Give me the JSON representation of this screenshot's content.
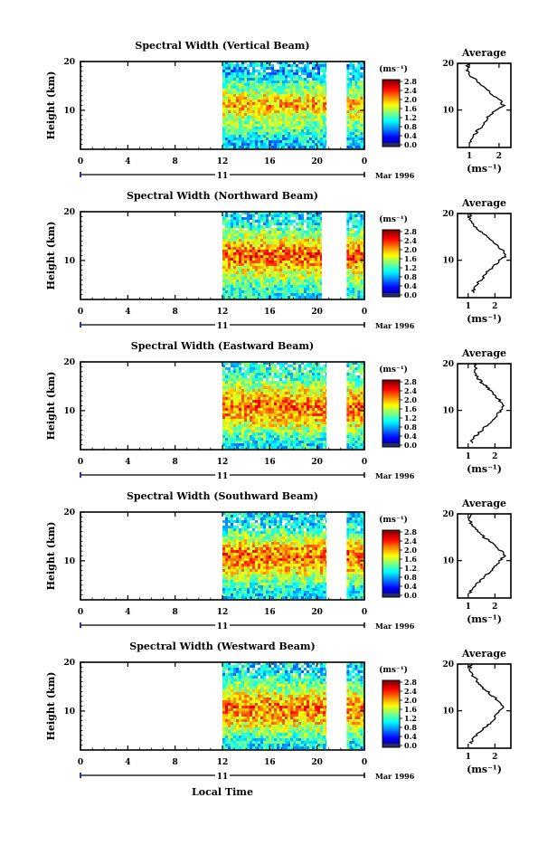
{
  "figure": {
    "date_label": "Mar 1996",
    "day_label": "11",
    "xlabel": "Local Time"
  },
  "colorbar": {
    "unit": "(ms⁻¹)",
    "ticks": [
      "2.8",
      "2.4",
      "2.0",
      "1.6",
      "1.2",
      "0.8",
      "0.4",
      "0.0"
    ]
  },
  "chart_data": [
    {
      "type": "heatmap",
      "title": "Spectral Width (Vertical Beam)",
      "ylabel": "Height (km)",
      "xlabel": "",
      "xticks": [
        "0",
        "4",
        "8",
        "12",
        "16",
        "20",
        "0"
      ],
      "yticks": [
        "20",
        "10"
      ],
      "xlim": [
        0,
        24
      ],
      "ylim": [
        2,
        20
      ],
      "data_spans_hours": [
        [
          12,
          20.8
        ],
        [
          22.5,
          24
        ]
      ],
      "clim": [
        0,
        3.0
      ],
      "profile": {
        "title": "Average",
        "xlabel": "(ms⁻¹)",
        "xticks": [
          "1",
          "2"
        ],
        "yticks": [
          "20",
          "10"
        ],
        "xlim": [
          0.6,
          2.4
        ],
        "height_km": [
          3,
          4,
          5,
          6,
          7,
          8,
          9,
          10,
          11,
          12,
          13,
          14,
          15,
          16,
          17,
          18,
          19,
          20
        ],
        "width_ms": [
          1.0,
          1.05,
          1.2,
          1.35,
          1.5,
          1.55,
          1.7,
          1.9,
          2.15,
          2.05,
          1.85,
          1.65,
          1.45,
          1.3,
          1.1,
          0.95,
          0.9,
          1.0
        ]
      }
    },
    {
      "type": "heatmap",
      "title": "Spectral Width (Northward Beam)",
      "ylabel": "Height (km)",
      "xlabel": "",
      "xticks": [
        "0",
        "4",
        "8",
        "12",
        "16",
        "20",
        "0"
      ],
      "yticks": [
        "20",
        "10"
      ],
      "xlim": [
        0,
        24
      ],
      "ylim": [
        2,
        20
      ],
      "data_spans_hours": [
        [
          12,
          20.4
        ],
        [
          22.5,
          24
        ]
      ],
      "clim": [
        0,
        3.0
      ],
      "profile": {
        "title": "Average",
        "xlabel": "(ms⁻¹)",
        "xticks": [
          "1",
          "2"
        ],
        "yticks": [
          "20",
          "10"
        ],
        "xlim": [
          0.6,
          2.6
        ],
        "height_km": [
          3,
          4,
          5,
          6,
          7,
          8,
          9,
          10,
          11,
          12,
          13,
          14,
          15,
          16,
          17,
          18,
          19,
          20
        ],
        "width_ms": [
          1.15,
          1.25,
          1.35,
          1.5,
          1.65,
          1.8,
          2.0,
          2.2,
          2.4,
          2.3,
          2.1,
          1.9,
          1.7,
          1.5,
          1.3,
          1.15,
          1.05,
          1.1
        ]
      }
    },
    {
      "type": "heatmap",
      "title": "Spectral Width (Eastward Beam)",
      "ylabel": "Height (km)",
      "xlabel": "",
      "xticks": [
        "0",
        "4",
        "8",
        "12",
        "16",
        "20",
        "0"
      ],
      "yticks": [
        "20",
        "10"
      ],
      "xlim": [
        0,
        24
      ],
      "ylim": [
        2,
        20
      ],
      "data_spans_hours": [
        [
          12,
          20.8
        ],
        [
          22.5,
          24
        ]
      ],
      "clim": [
        0,
        3.0
      ],
      "profile": {
        "title": "Average",
        "xlabel": "(ms⁻¹)",
        "xticks": [
          "1",
          "2"
        ],
        "yticks": [
          "20",
          "10"
        ],
        "xlim": [
          0.6,
          2.6
        ],
        "height_km": [
          3,
          4,
          5,
          6,
          7,
          8,
          9,
          10,
          11,
          12,
          13,
          14,
          15,
          16,
          17,
          18,
          19,
          20
        ],
        "width_ms": [
          1.1,
          1.2,
          1.35,
          1.55,
          1.75,
          1.95,
          2.1,
          2.2,
          2.35,
          2.2,
          2.05,
          1.9,
          1.7,
          1.5,
          1.35,
          1.25,
          1.3,
          1.2
        ]
      }
    },
    {
      "type": "heatmap",
      "title": "Spectral Width (Southward Beam)",
      "ylabel": "Height (km)",
      "xlabel": "",
      "xticks": [
        "0",
        "4",
        "8",
        "12",
        "16",
        "20",
        "0"
      ],
      "yticks": [
        "20",
        "10"
      ],
      "xlim": [
        0,
        24
      ],
      "ylim": [
        2,
        20
      ],
      "data_spans_hours": [
        [
          12,
          20.8
        ],
        [
          22.5,
          24
        ]
      ],
      "clim": [
        0,
        3.0
      ],
      "profile": {
        "title": "Average",
        "xlabel": "(ms⁻¹)",
        "xticks": [
          "1",
          "2"
        ],
        "yticks": [
          "20",
          "10"
        ],
        "xlim": [
          0.6,
          2.6
        ],
        "height_km": [
          3,
          4,
          5,
          6,
          7,
          8,
          9,
          10,
          11,
          12,
          13,
          14,
          15,
          16,
          17,
          18,
          19,
          20
        ],
        "width_ms": [
          1.05,
          1.15,
          1.3,
          1.5,
          1.7,
          1.9,
          2.05,
          2.2,
          2.35,
          2.25,
          2.05,
          1.85,
          1.6,
          1.4,
          1.25,
          1.1,
          1.05,
          1.1
        ]
      }
    },
    {
      "type": "heatmap",
      "title": "Spectral Width (Westward Beam)",
      "ylabel": "Height (km)",
      "xlabel": "Local Time",
      "xticks": [
        "0",
        "4",
        "8",
        "12",
        "16",
        "20",
        "0"
      ],
      "yticks": [
        "20",
        "10"
      ],
      "xlim": [
        0,
        24
      ],
      "ylim": [
        2,
        20
      ],
      "data_spans_hours": [
        [
          12,
          20.8
        ],
        [
          22.5,
          24
        ]
      ],
      "clim": [
        0,
        3.0
      ],
      "profile": {
        "title": "Average",
        "xlabel": "(ms⁻¹)",
        "xticks": [
          "1",
          "2"
        ],
        "yticks": [
          "20",
          "10"
        ],
        "xlim": [
          0.6,
          2.6
        ],
        "height_km": [
          3,
          4,
          5,
          6,
          7,
          8,
          9,
          10,
          11,
          12,
          13,
          14,
          15,
          16,
          17,
          18,
          19,
          20
        ],
        "width_ms": [
          1.1,
          1.2,
          1.35,
          1.55,
          1.75,
          1.95,
          2.05,
          2.2,
          2.3,
          2.15,
          1.95,
          1.75,
          1.55,
          1.4,
          1.25,
          1.1,
          1.05,
          1.1
        ]
      }
    }
  ]
}
